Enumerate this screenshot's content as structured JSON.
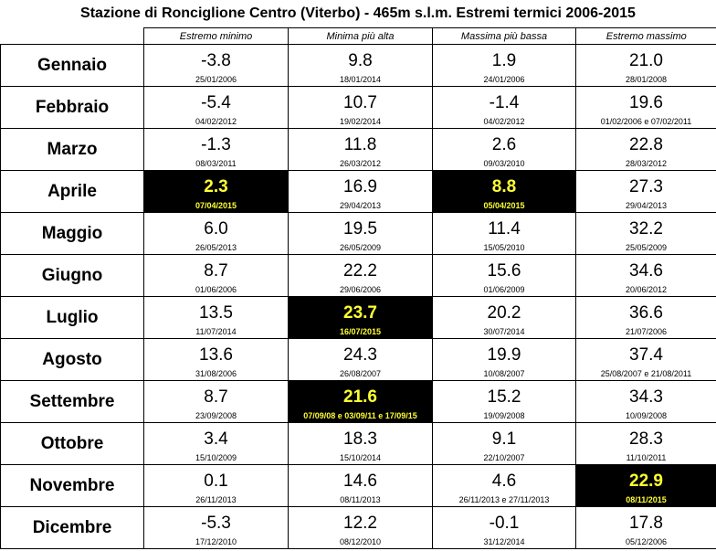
{
  "title": "Stazione di Ronciglione Centro (Viterbo)  - 465m s.l.m. Estremi termici 2006-2015",
  "columns": [
    "Estremo minimo",
    "Minima più alta",
    "Massima più bassa",
    "Estremo massimo"
  ],
  "highlight_color": "#ffff33",
  "rows": [
    {
      "month": "Gennaio",
      "cells": [
        {
          "value": "-3.8",
          "date": "25/01/2006"
        },
        {
          "value": "9.8",
          "date": "18/01/2014"
        },
        {
          "value": "1.9",
          "date": "24/01/2006"
        },
        {
          "value": "21.0",
          "date": "28/01/2008"
        }
      ]
    },
    {
      "month": "Febbraio",
      "cells": [
        {
          "value": "-5.4",
          "date": "04/02/2012"
        },
        {
          "value": "10.7",
          "date": "19/02/2014"
        },
        {
          "value": "-1.4",
          "date": "04/02/2012"
        },
        {
          "value": "19.6",
          "date": "01/02/2006 e 07/02/2011"
        }
      ]
    },
    {
      "month": "Marzo",
      "cells": [
        {
          "value": "-1.3",
          "date": "08/03/2011"
        },
        {
          "value": "11.8",
          "date": "26/03/2012"
        },
        {
          "value": "2.6",
          "date": "09/03/2010"
        },
        {
          "value": "22.8",
          "date": "28/03/2012"
        }
      ]
    },
    {
      "month": "Aprile",
      "cells": [
        {
          "value": "2.3",
          "date": "07/04/2015",
          "highlight": true
        },
        {
          "value": "16.9",
          "date": "29/04/2013"
        },
        {
          "value": "8.8",
          "date": "05/04/2015",
          "highlight": true
        },
        {
          "value": "27.3",
          "date": "29/04/2013"
        }
      ]
    },
    {
      "month": "Maggio",
      "cells": [
        {
          "value": "6.0",
          "date": "26/05/2013"
        },
        {
          "value": "19.5",
          "date": "26/05/2009"
        },
        {
          "value": "11.4",
          "date": "15/05/2010"
        },
        {
          "value": "32.2",
          "date": "25/05/2009"
        }
      ]
    },
    {
      "month": "Giugno",
      "cells": [
        {
          "value": "8.7",
          "date": "01/06/2006"
        },
        {
          "value": "22.2",
          "date": "29/06/2006"
        },
        {
          "value": "15.6",
          "date": "01/06/2009"
        },
        {
          "value": "34.6",
          "date": "20/06/2012"
        }
      ]
    },
    {
      "month": "Luglio",
      "cells": [
        {
          "value": "13.5",
          "date": "11/07/2014"
        },
        {
          "value": "23.7",
          "date": "16/07/2015",
          "highlight": true
        },
        {
          "value": "20.2",
          "date": "30/07/2014"
        },
        {
          "value": "36.6",
          "date": "21/07/2006"
        }
      ]
    },
    {
      "month": "Agosto",
      "cells": [
        {
          "value": "13.6",
          "date": "31/08/2006"
        },
        {
          "value": "24.3",
          "date": "26/08/2007"
        },
        {
          "value": "19.9",
          "date": "10/08/2007"
        },
        {
          "value": "37.4",
          "date": "25/08/2007 e 21/08/2011"
        }
      ]
    },
    {
      "month": "Settembre",
      "cells": [
        {
          "value": "8.7",
          "date": "23/09/2008"
        },
        {
          "value": "21.6",
          "date": "07/09/08 e 03/09/11 e 17/09/15",
          "highlight": true
        },
        {
          "value": "15.2",
          "date": "19/09/2008"
        },
        {
          "value": "34.3",
          "date": "10/09/2008"
        }
      ]
    },
    {
      "month": "Ottobre",
      "cells": [
        {
          "value": "3.4",
          "date": "15/10/2009"
        },
        {
          "value": "18.3",
          "date": "15/10/2014"
        },
        {
          "value": "9.1",
          "date": "22/10/2007"
        },
        {
          "value": "28.3",
          "date": "11/10/2011"
        }
      ]
    },
    {
      "month": "Novembre",
      "cells": [
        {
          "value": "0.1",
          "date": "26/11/2013"
        },
        {
          "value": "14.6",
          "date": "08/11/2013"
        },
        {
          "value": "4.6",
          "date": "26/11/2013 e 27/11/2013"
        },
        {
          "value": "22.9",
          "date": "08/11/2015",
          "highlight": true
        }
      ]
    },
    {
      "month": "Dicembre",
      "cells": [
        {
          "value": "-5.3",
          "date": "17/12/2010"
        },
        {
          "value": "12.2",
          "date": "08/12/2010"
        },
        {
          "value": "-0.1",
          "date": "31/12/2014"
        },
        {
          "value": "17.8",
          "date": "05/12/2006"
        }
      ]
    }
  ]
}
